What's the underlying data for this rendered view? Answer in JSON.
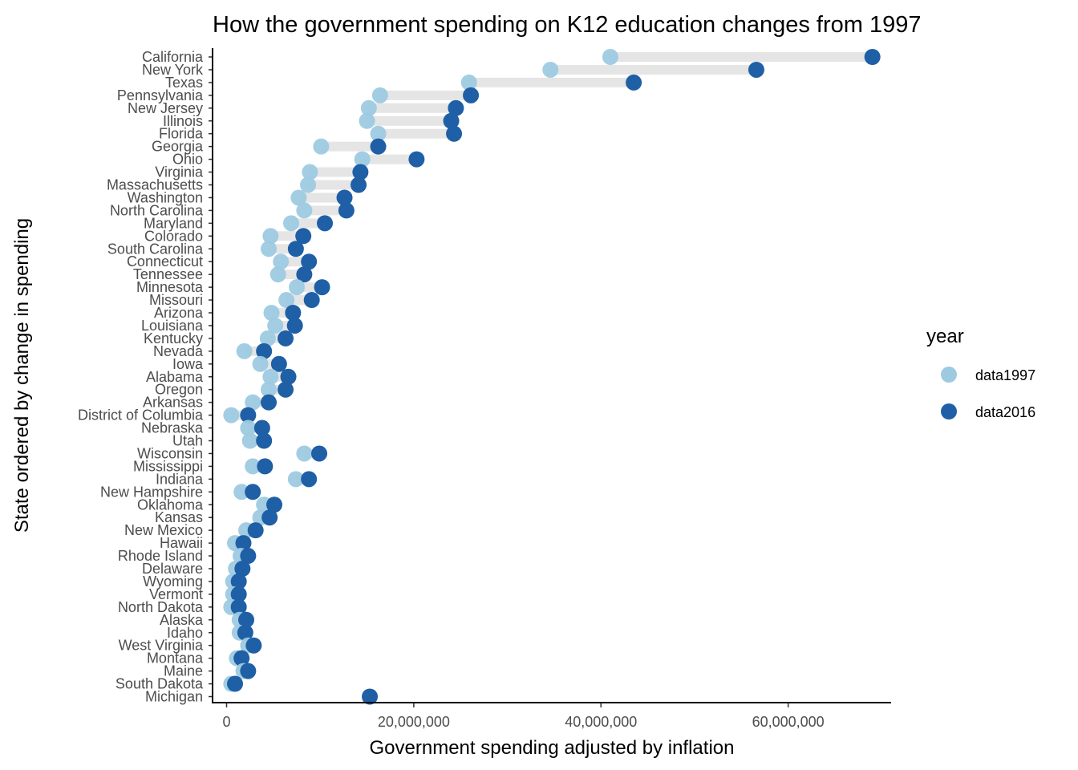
{
  "chart_data": {
    "type": "dumbbell",
    "title": "How the government spending on K12 education changes from 1997",
    "xlabel": "Government spending adjusted by inflation",
    "ylabel": "State ordered by change in spending",
    "xlim": [
      -1500000,
      71000000
    ],
    "x_ticks": [
      0,
      20000000,
      40000000,
      60000000
    ],
    "x_tick_labels": [
      "0",
      "20,000,000",
      "40,000,000",
      "60,000,000"
    ],
    "grid": false,
    "legend": {
      "title": "year",
      "position": "right",
      "entries": [
        {
          "name": "data1997",
          "color": "#9ecae1"
        },
        {
          "name": "data2016",
          "color": "#1f5fa6"
        }
      ]
    },
    "connector_color": "#e5e5e5",
    "rows": [
      {
        "state": "California",
        "data1997": 41000000,
        "data2016": 69000000
      },
      {
        "state": "New York",
        "data1997": 34600000,
        "data2016": 56600000
      },
      {
        "state": "Texas",
        "data1997": 25900000,
        "data2016": 43500000
      },
      {
        "state": "Pennsylvania",
        "data1997": 16400000,
        "data2016": 26100000
      },
      {
        "state": "New Jersey",
        "data1997": 15200000,
        "data2016": 24500000
      },
      {
        "state": "Illinois",
        "data1997": 15000000,
        "data2016": 24000000
      },
      {
        "state": "Florida",
        "data1997": 16200000,
        "data2016": 24300000
      },
      {
        "state": "Georgia",
        "data1997": 10100000,
        "data2016": 16200000
      },
      {
        "state": "Ohio",
        "data1997": 14500000,
        "data2016": 20300000
      },
      {
        "state": "Virginia",
        "data1997": 8900000,
        "data2016": 14300000
      },
      {
        "state": "Massachusetts",
        "data1997": 8700000,
        "data2016": 14100000
      },
      {
        "state": "Washington",
        "data1997": 7700000,
        "data2016": 12600000
      },
      {
        "state": "North Carolina",
        "data1997": 8300000,
        "data2016": 12800000
      },
      {
        "state": "Maryland",
        "data1997": 6900000,
        "data2016": 10500000
      },
      {
        "state": "Colorado",
        "data1997": 4700000,
        "data2016": 8200000
      },
      {
        "state": "South Carolina",
        "data1997": 4500000,
        "data2016": 7400000
      },
      {
        "state": "Connecticut",
        "data1997": 5800000,
        "data2016": 8800000
      },
      {
        "state": "Tennessee",
        "data1997": 5500000,
        "data2016": 8300000
      },
      {
        "state": "Minnesota",
        "data1997": 7500000,
        "data2016": 10200000
      },
      {
        "state": "Missouri",
        "data1997": 6400000,
        "data2016": 9100000
      },
      {
        "state": "Arizona",
        "data1997": 4800000,
        "data2016": 7100000
      },
      {
        "state": "Louisiana",
        "data1997": 5200000,
        "data2016": 7300000
      },
      {
        "state": "Kentucky",
        "data1997": 4400000,
        "data2016": 6300000
      },
      {
        "state": "Nevada",
        "data1997": 1900000,
        "data2016": 4000000
      },
      {
        "state": "Iowa",
        "data1997": 3600000,
        "data2016": 5600000
      },
      {
        "state": "Alabama",
        "data1997": 4700000,
        "data2016": 6600000
      },
      {
        "state": "Oregon",
        "data1997": 4500000,
        "data2016": 6300000
      },
      {
        "state": "Arkansas",
        "data1997": 2800000,
        "data2016": 4500000
      },
      {
        "state": "District of Columbia",
        "data1997": 500000,
        "data2016": 2300000
      },
      {
        "state": "Nebraska",
        "data1997": 2300000,
        "data2016": 3800000
      },
      {
        "state": "Utah",
        "data1997": 2500000,
        "data2016": 4000000
      },
      {
        "state": "Wisconsin",
        "data1997": 8300000,
        "data2016": 9900000
      },
      {
        "state": "Mississippi",
        "data1997": 2800000,
        "data2016": 4100000
      },
      {
        "state": "Indiana",
        "data1997": 7400000,
        "data2016": 8800000
      },
      {
        "state": "New Hampshire",
        "data1997": 1600000,
        "data2016": 2800000
      },
      {
        "state": "Oklahoma",
        "data1997": 4000000,
        "data2016": 5100000
      },
      {
        "state": "Kansas",
        "data1997": 3600000,
        "data2016": 4600000
      },
      {
        "state": "New Mexico",
        "data1997": 2100000,
        "data2016": 3100000
      },
      {
        "state": "Hawaii",
        "data1997": 900000,
        "data2016": 1800000
      },
      {
        "state": "Rhode Island",
        "data1997": 1500000,
        "data2016": 2300000
      },
      {
        "state": "Delaware",
        "data1997": 1000000,
        "data2016": 1700000
      },
      {
        "state": "Wyoming",
        "data1997": 700000,
        "data2016": 1300000
      },
      {
        "state": "Vermont",
        "data1997": 700000,
        "data2016": 1300000
      },
      {
        "state": "North Dakota",
        "data1997": 500000,
        "data2016": 1300000
      },
      {
        "state": "Alaska",
        "data1997": 1400000,
        "data2016": 2100000
      },
      {
        "state": "Idaho",
        "data1997": 1400000,
        "data2016": 2000000
      },
      {
        "state": "West Virginia",
        "data1997": 2300000,
        "data2016": 2900000
      },
      {
        "state": "Montana",
        "data1997": 1100000,
        "data2016": 1600000
      },
      {
        "state": "Maine",
        "data1997": 1800000,
        "data2016": 2300000
      },
      {
        "state": "South Dakota",
        "data1997": 500000,
        "data2016": 900000
      },
      {
        "state": "Michigan",
        "data1997": null,
        "data2016": 15300000
      }
    ]
  }
}
